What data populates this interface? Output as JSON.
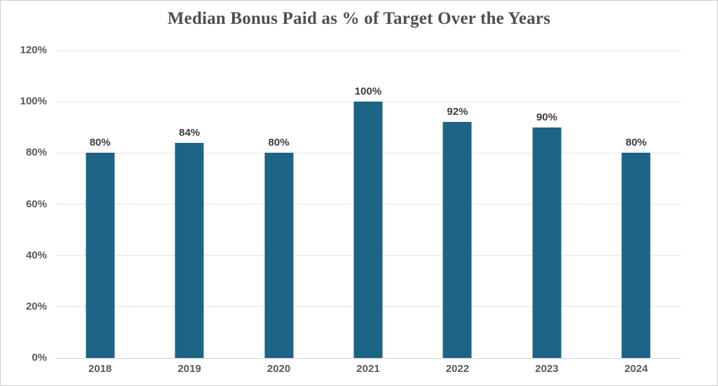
{
  "chart_data": {
    "type": "bar",
    "title": "Median Bonus Paid as % of Target Over the Years",
    "categories": [
      "2018",
      "2019",
      "2020",
      "2021",
      "2022",
      "2023",
      "2024"
    ],
    "values": [
      80,
      84,
      80,
      100,
      92,
      90,
      80
    ],
    "data_labels": [
      "80%",
      "84%",
      "80%",
      "100%",
      "92%",
      "90%",
      "80%"
    ],
    "xlabel": "",
    "ylabel": "",
    "ylim": [
      0,
      120
    ],
    "ytick_step": 20,
    "ytick_labels": [
      "0%",
      "20%",
      "40%",
      "60%",
      "80%",
      "100%",
      "120%"
    ],
    "grid": "horizontal",
    "legend": "none",
    "colors": {
      "bar": "#1d6486",
      "title": "#4f4f4f",
      "tick_label": "#595959",
      "data_label": "#3d3d3d",
      "gridline": "#e5e5e5",
      "axis_line": "#d2d2d2",
      "frame_border": "#d0d0d0",
      "background": "#ffffff"
    }
  }
}
